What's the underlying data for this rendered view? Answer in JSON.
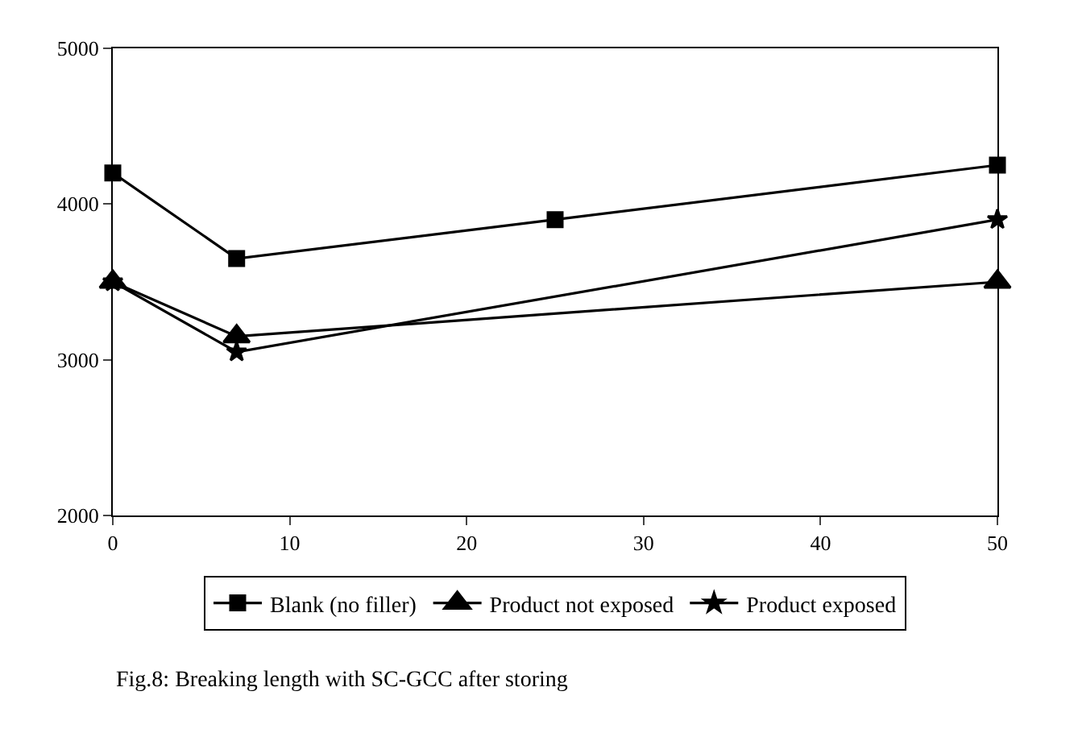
{
  "chart_data": {
    "type": "line",
    "annotations": [
      "Fig.8: Breaking length with SC-GCC after storing"
    ],
    "x": [
      0,
      7,
      25,
      50
    ],
    "series": [
      {
        "name": "Blank (no filler)",
        "color": "#000000",
        "marker": "square",
        "values": [
          4200,
          3650,
          3900,
          4250
        ]
      },
      {
        "name": "Product not exposed",
        "color": "#000000",
        "marker": "triangle",
        "values": [
          3500,
          3150,
          null,
          3500
        ]
      },
      {
        "name": "Product exposed",
        "color": "#000000",
        "marker": "star",
        "values": [
          3500,
          3050,
          null,
          3900
        ]
      }
    ],
    "xlim": [
      0,
      50
    ],
    "xticks": [
      0,
      10,
      20,
      30,
      40,
      50
    ],
    "ylim": [
      2000,
      5000
    ],
    "yticks": [
      2000,
      3000,
      4000,
      5000
    ],
    "grid": false,
    "legend": "bottom",
    "line_style": "solid"
  }
}
